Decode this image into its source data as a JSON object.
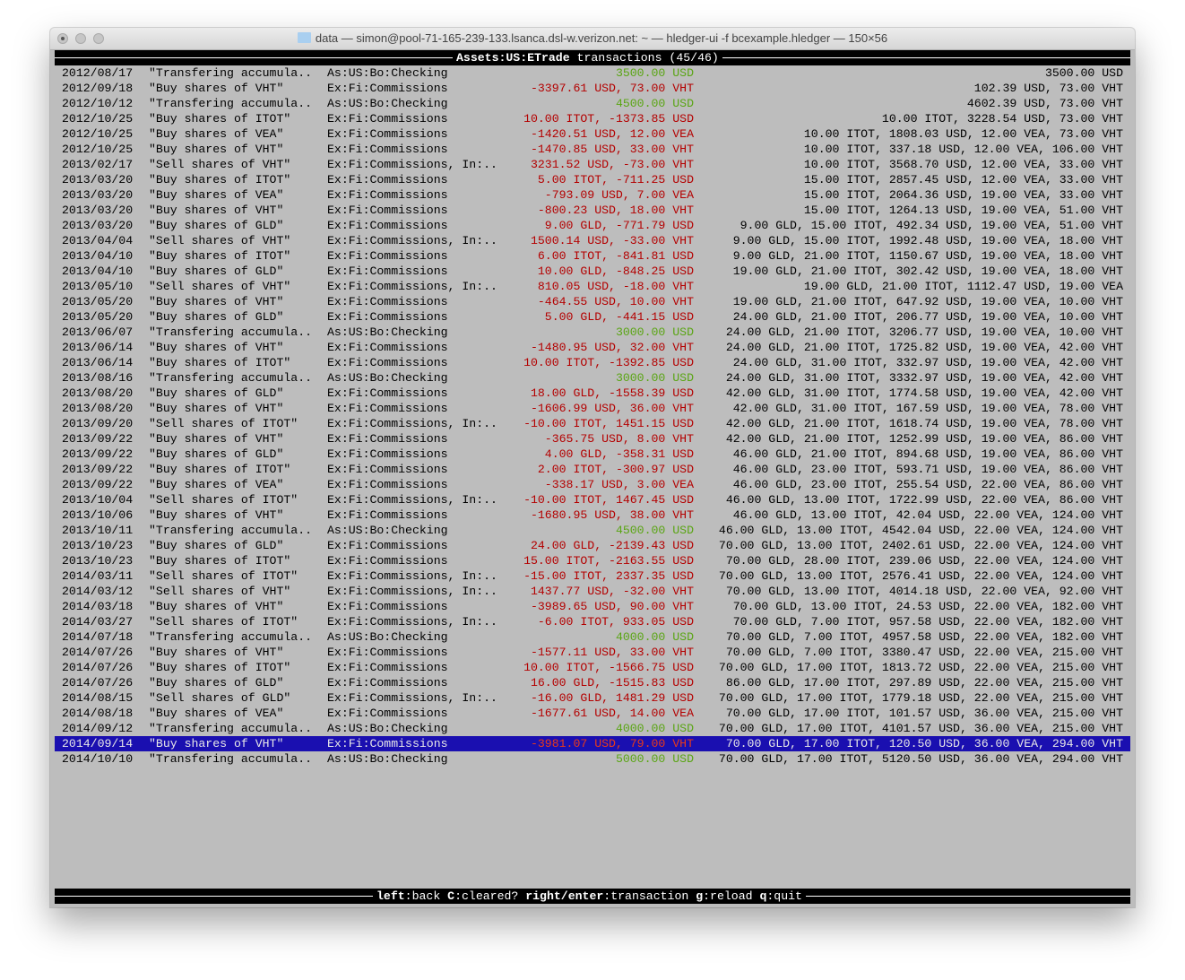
{
  "window": {
    "title": "data — simon@pool-71-165-239-133.lsanca.dsl-w.verizon.net: ~ — hledger-ui -f bcexample.hledger — 150×56"
  },
  "header": {
    "account": "Assets:US:ETrade",
    "suffix": " transactions (45/46)"
  },
  "colors": {
    "positive": "#5aa514",
    "negative": "#b40000",
    "selected_negative": "#e83a1a",
    "selected_positive": "#7acc2a",
    "selection_bg": "#1a0fb0"
  },
  "selected_index": 44,
  "rows": [
    {
      "date": "2012/08/17",
      "desc": "\"Transfering accumula..",
      "acct": "As:US:Bo:Checking",
      "amt": "3500.00 USD",
      "pos": true,
      "bal": "3500.00 USD"
    },
    {
      "date": "2012/09/18",
      "desc": "\"Buy shares of VHT\"",
      "acct": "Ex:Fi:Commissions",
      "amt": "-3397.61 USD, 73.00 VHT",
      "pos": false,
      "bal": "102.39 USD, 73.00 VHT"
    },
    {
      "date": "2012/10/12",
      "desc": "\"Transfering accumula..",
      "acct": "As:US:Bo:Checking",
      "amt": "4500.00 USD",
      "pos": true,
      "bal": "4602.39 USD, 73.00 VHT"
    },
    {
      "date": "2012/10/25",
      "desc": "\"Buy shares of ITOT\"",
      "acct": "Ex:Fi:Commissions",
      "amt": "10.00 ITOT, -1373.85 USD",
      "pos": false,
      "bal": "10.00 ITOT, 3228.54 USD, 73.00 VHT"
    },
    {
      "date": "2012/10/25",
      "desc": "\"Buy shares of VEA\"",
      "acct": "Ex:Fi:Commissions",
      "amt": "-1420.51 USD, 12.00 VEA",
      "pos": false,
      "bal": "10.00 ITOT, 1808.03 USD, 12.00 VEA, 73.00 VHT"
    },
    {
      "date": "2012/10/25",
      "desc": "\"Buy shares of VHT\"",
      "acct": "Ex:Fi:Commissions",
      "amt": "-1470.85 USD, 33.00 VHT",
      "pos": false,
      "bal": "10.00 ITOT, 337.18 USD, 12.00 VEA, 106.00 VHT"
    },
    {
      "date": "2013/02/17",
      "desc": "\"Sell shares of VHT\"",
      "acct": "Ex:Fi:Commissions, In:..",
      "amt": "3231.52 USD, -73.00 VHT",
      "pos": false,
      "bal": "10.00 ITOT, 3568.70 USD, 12.00 VEA, 33.00 VHT"
    },
    {
      "date": "2013/03/20",
      "desc": "\"Buy shares of ITOT\"",
      "acct": "Ex:Fi:Commissions",
      "amt": "5.00 ITOT, -711.25 USD",
      "pos": false,
      "bal": "15.00 ITOT, 2857.45 USD, 12.00 VEA, 33.00 VHT"
    },
    {
      "date": "2013/03/20",
      "desc": "\"Buy shares of VEA\"",
      "acct": "Ex:Fi:Commissions",
      "amt": "-793.09 USD, 7.00 VEA",
      "pos": false,
      "bal": "15.00 ITOT, 2064.36 USD, 19.00 VEA, 33.00 VHT"
    },
    {
      "date": "2013/03/20",
      "desc": "\"Buy shares of VHT\"",
      "acct": "Ex:Fi:Commissions",
      "amt": "-800.23 USD, 18.00 VHT",
      "pos": false,
      "bal": "15.00 ITOT, 1264.13 USD, 19.00 VEA, 51.00 VHT"
    },
    {
      "date": "2013/03/20",
      "desc": "\"Buy shares of GLD\"",
      "acct": "Ex:Fi:Commissions",
      "amt": "9.00 GLD, -771.79 USD",
      "pos": false,
      "bal": "9.00 GLD, 15.00 ITOT, 492.34 USD, 19.00 VEA, 51.00 VHT"
    },
    {
      "date": "2013/04/04",
      "desc": "\"Sell shares of VHT\"",
      "acct": "Ex:Fi:Commissions, In:..",
      "amt": "1500.14 USD, -33.00 VHT",
      "pos": false,
      "bal": "9.00 GLD, 15.00 ITOT, 1992.48 USD, 19.00 VEA, 18.00 VHT"
    },
    {
      "date": "2013/04/10",
      "desc": "\"Buy shares of ITOT\"",
      "acct": "Ex:Fi:Commissions",
      "amt": "6.00 ITOT, -841.81 USD",
      "pos": false,
      "bal": "9.00 GLD, 21.00 ITOT, 1150.67 USD, 19.00 VEA, 18.00 VHT"
    },
    {
      "date": "2013/04/10",
      "desc": "\"Buy shares of GLD\"",
      "acct": "Ex:Fi:Commissions",
      "amt": "10.00 GLD, -848.25 USD",
      "pos": false,
      "bal": "19.00 GLD, 21.00 ITOT, 302.42 USD, 19.00 VEA, 18.00 VHT"
    },
    {
      "date": "2013/05/10",
      "desc": "\"Sell shares of VHT\"",
      "acct": "Ex:Fi:Commissions, In:..",
      "amt": "810.05 USD, -18.00 VHT",
      "pos": false,
      "bal": "19.00 GLD, 21.00 ITOT, 1112.47 USD, 19.00 VEA"
    },
    {
      "date": "2013/05/20",
      "desc": "\"Buy shares of VHT\"",
      "acct": "Ex:Fi:Commissions",
      "amt": "-464.55 USD, 10.00 VHT",
      "pos": false,
      "bal": "19.00 GLD, 21.00 ITOT, 647.92 USD, 19.00 VEA, 10.00 VHT"
    },
    {
      "date": "2013/05/20",
      "desc": "\"Buy shares of GLD\"",
      "acct": "Ex:Fi:Commissions",
      "amt": "5.00 GLD, -441.15 USD",
      "pos": false,
      "bal": "24.00 GLD, 21.00 ITOT, 206.77 USD, 19.00 VEA, 10.00 VHT"
    },
    {
      "date": "2013/06/07",
      "desc": "\"Transfering accumula..",
      "acct": "As:US:Bo:Checking",
      "amt": "3000.00 USD",
      "pos": true,
      "bal": "24.00 GLD, 21.00 ITOT, 3206.77 USD, 19.00 VEA, 10.00 VHT"
    },
    {
      "date": "2013/06/14",
      "desc": "\"Buy shares of VHT\"",
      "acct": "Ex:Fi:Commissions",
      "amt": "-1480.95 USD, 32.00 VHT",
      "pos": false,
      "bal": "24.00 GLD, 21.00 ITOT, 1725.82 USD, 19.00 VEA, 42.00 VHT"
    },
    {
      "date": "2013/06/14",
      "desc": "\"Buy shares of ITOT\"",
      "acct": "Ex:Fi:Commissions",
      "amt": "10.00 ITOT, -1392.85 USD",
      "pos": false,
      "bal": "24.00 GLD, 31.00 ITOT, 332.97 USD, 19.00 VEA, 42.00 VHT"
    },
    {
      "date": "2013/08/16",
      "desc": "\"Transfering accumula..",
      "acct": "As:US:Bo:Checking",
      "amt": "3000.00 USD",
      "pos": true,
      "bal": "24.00 GLD, 31.00 ITOT, 3332.97 USD, 19.00 VEA, 42.00 VHT"
    },
    {
      "date": "2013/08/20",
      "desc": "\"Buy shares of GLD\"",
      "acct": "Ex:Fi:Commissions",
      "amt": "18.00 GLD, -1558.39 USD",
      "pos": false,
      "bal": "42.00 GLD, 31.00 ITOT, 1774.58 USD, 19.00 VEA, 42.00 VHT"
    },
    {
      "date": "2013/08/20",
      "desc": "\"Buy shares of VHT\"",
      "acct": "Ex:Fi:Commissions",
      "amt": "-1606.99 USD, 36.00 VHT",
      "pos": false,
      "bal": "42.00 GLD, 31.00 ITOT, 167.59 USD, 19.00 VEA, 78.00 VHT"
    },
    {
      "date": "2013/09/20",
      "desc": "\"Sell shares of ITOT\"",
      "acct": "Ex:Fi:Commissions, In:..",
      "amt": "-10.00 ITOT, 1451.15 USD",
      "pos": false,
      "bal": "42.00 GLD, 21.00 ITOT, 1618.74 USD, 19.00 VEA, 78.00 VHT"
    },
    {
      "date": "2013/09/22",
      "desc": "\"Buy shares of VHT\"",
      "acct": "Ex:Fi:Commissions",
      "amt": "-365.75 USD, 8.00 VHT",
      "pos": false,
      "bal": "42.00 GLD, 21.00 ITOT, 1252.99 USD, 19.00 VEA, 86.00 VHT"
    },
    {
      "date": "2013/09/22",
      "desc": "\"Buy shares of GLD\"",
      "acct": "Ex:Fi:Commissions",
      "amt": "4.00 GLD, -358.31 USD",
      "pos": false,
      "bal": "46.00 GLD, 21.00 ITOT, 894.68 USD, 19.00 VEA, 86.00 VHT"
    },
    {
      "date": "2013/09/22",
      "desc": "\"Buy shares of ITOT\"",
      "acct": "Ex:Fi:Commissions",
      "amt": "2.00 ITOT, -300.97 USD",
      "pos": false,
      "bal": "46.00 GLD, 23.00 ITOT, 593.71 USD, 19.00 VEA, 86.00 VHT"
    },
    {
      "date": "2013/09/22",
      "desc": "\"Buy shares of VEA\"",
      "acct": "Ex:Fi:Commissions",
      "amt": "-338.17 USD, 3.00 VEA",
      "pos": false,
      "bal": "46.00 GLD, 23.00 ITOT, 255.54 USD, 22.00 VEA, 86.00 VHT"
    },
    {
      "date": "2013/10/04",
      "desc": "\"Sell shares of ITOT\"",
      "acct": "Ex:Fi:Commissions, In:..",
      "amt": "-10.00 ITOT, 1467.45 USD",
      "pos": false,
      "bal": "46.00 GLD, 13.00 ITOT, 1722.99 USD, 22.00 VEA, 86.00 VHT"
    },
    {
      "date": "2013/10/06",
      "desc": "\"Buy shares of VHT\"",
      "acct": "Ex:Fi:Commissions",
      "amt": "-1680.95 USD, 38.00 VHT",
      "pos": false,
      "bal": "46.00 GLD, 13.00 ITOT, 42.04 USD, 22.00 VEA, 124.00 VHT"
    },
    {
      "date": "2013/10/11",
      "desc": "\"Transfering accumula..",
      "acct": "As:US:Bo:Checking",
      "amt": "4500.00 USD",
      "pos": true,
      "bal": "46.00 GLD, 13.00 ITOT, 4542.04 USD, 22.00 VEA, 124.00 VHT"
    },
    {
      "date": "2013/10/23",
      "desc": "\"Buy shares of GLD\"",
      "acct": "Ex:Fi:Commissions",
      "amt": "24.00 GLD, -2139.43 USD",
      "pos": false,
      "bal": "70.00 GLD, 13.00 ITOT, 2402.61 USD, 22.00 VEA, 124.00 VHT"
    },
    {
      "date": "2013/10/23",
      "desc": "\"Buy shares of ITOT\"",
      "acct": "Ex:Fi:Commissions",
      "amt": "15.00 ITOT, -2163.55 USD",
      "pos": false,
      "bal": "70.00 GLD, 28.00 ITOT, 239.06 USD, 22.00 VEA, 124.00 VHT"
    },
    {
      "date": "2014/03/11",
      "desc": "\"Sell shares of ITOT\"",
      "acct": "Ex:Fi:Commissions, In:..",
      "amt": "-15.00 ITOT, 2337.35 USD",
      "pos": false,
      "bal": "70.00 GLD, 13.00 ITOT, 2576.41 USD, 22.00 VEA, 124.00 VHT"
    },
    {
      "date": "2014/03/12",
      "desc": "\"Sell shares of VHT\"",
      "acct": "Ex:Fi:Commissions, In:..",
      "amt": "1437.77 USD, -32.00 VHT",
      "pos": false,
      "bal": "70.00 GLD, 13.00 ITOT, 4014.18 USD, 22.00 VEA, 92.00 VHT"
    },
    {
      "date": "2014/03/18",
      "desc": "\"Buy shares of VHT\"",
      "acct": "Ex:Fi:Commissions",
      "amt": "-3989.65 USD, 90.00 VHT",
      "pos": false,
      "bal": "70.00 GLD, 13.00 ITOT, 24.53 USD, 22.00 VEA, 182.00 VHT"
    },
    {
      "date": "2014/03/27",
      "desc": "\"Sell shares of ITOT\"",
      "acct": "Ex:Fi:Commissions, In:..",
      "amt": "-6.00 ITOT, 933.05 USD",
      "pos": false,
      "bal": "70.00 GLD, 7.00 ITOT, 957.58 USD, 22.00 VEA, 182.00 VHT"
    },
    {
      "date": "2014/07/18",
      "desc": "\"Transfering accumula..",
      "acct": "As:US:Bo:Checking",
      "amt": "4000.00 USD",
      "pos": true,
      "bal": "70.00 GLD, 7.00 ITOT, 4957.58 USD, 22.00 VEA, 182.00 VHT"
    },
    {
      "date": "2014/07/26",
      "desc": "\"Buy shares of VHT\"",
      "acct": "Ex:Fi:Commissions",
      "amt": "-1577.11 USD, 33.00 VHT",
      "pos": false,
      "bal": "70.00 GLD, 7.00 ITOT, 3380.47 USD, 22.00 VEA, 215.00 VHT"
    },
    {
      "date": "2014/07/26",
      "desc": "\"Buy shares of ITOT\"",
      "acct": "Ex:Fi:Commissions",
      "amt": "10.00 ITOT, -1566.75 USD",
      "pos": false,
      "bal": "70.00 GLD, 17.00 ITOT, 1813.72 USD, 22.00 VEA, 215.00 VHT"
    },
    {
      "date": "2014/07/26",
      "desc": "\"Buy shares of GLD\"",
      "acct": "Ex:Fi:Commissions",
      "amt": "16.00 GLD, -1515.83 USD",
      "pos": false,
      "bal": "86.00 GLD, 17.00 ITOT, 297.89 USD, 22.00 VEA, 215.00 VHT"
    },
    {
      "date": "2014/08/15",
      "desc": "\"Sell shares of GLD\"",
      "acct": "Ex:Fi:Commissions, In:..",
      "amt": "-16.00 GLD, 1481.29 USD",
      "pos": false,
      "bal": "70.00 GLD, 17.00 ITOT, 1779.18 USD, 22.00 VEA, 215.00 VHT"
    },
    {
      "date": "2014/08/18",
      "desc": "\"Buy shares of VEA\"",
      "acct": "Ex:Fi:Commissions",
      "amt": "-1677.61 USD, 14.00 VEA",
      "pos": false,
      "bal": "70.00 GLD, 17.00 ITOT, 101.57 USD, 36.00 VEA, 215.00 VHT"
    },
    {
      "date": "2014/09/12",
      "desc": "\"Transfering accumula..",
      "acct": "As:US:Bo:Checking",
      "amt": "4000.00 USD",
      "pos": true,
      "bal": "70.00 GLD, 17.00 ITOT, 4101.57 USD, 36.00 VEA, 215.00 VHT"
    },
    {
      "date": "2014/09/14",
      "desc": "\"Buy shares of VHT\"",
      "acct": "Ex:Fi:Commissions",
      "amt": "-3981.07 USD, 79.00 VHT",
      "pos": false,
      "bal": "70.00 GLD, 17.00 ITOT, 120.50 USD, 36.00 VEA, 294.00 VHT"
    },
    {
      "date": "2014/10/10",
      "desc": "\"Transfering accumula..",
      "acct": "As:US:Bo:Checking",
      "amt": "5000.00 USD",
      "pos": true,
      "bal": "70.00 GLD, 17.00 ITOT, 5120.50 USD, 36.00 VEA, 294.00 VHT"
    }
  ],
  "footer": {
    "keys": [
      {
        "key": "left",
        "action": "back"
      },
      {
        "key": "C",
        "action": "cleared?"
      },
      {
        "key": "right/enter",
        "action": "transaction"
      },
      {
        "key": "g",
        "action": "reload"
      },
      {
        "key": "q",
        "action": "quit"
      }
    ]
  }
}
